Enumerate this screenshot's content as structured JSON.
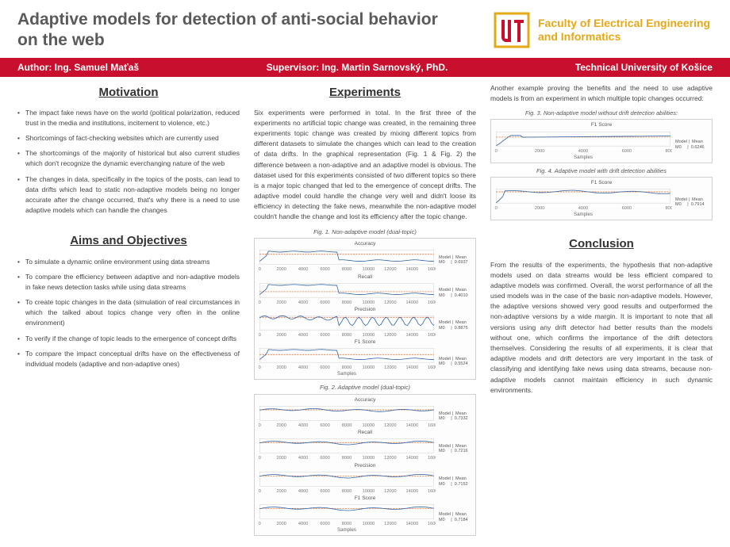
{
  "header": {
    "title": "Adaptive models for detection of anti-social behavior on the web",
    "faculty": "Faculty of Electrical Engineering and Informatics"
  },
  "redbar": {
    "author": "Author: Ing. Samuel Maťaš",
    "supervisor": "Supervisor: Ing. Martin Sarnovský, PhD.",
    "university": "Technical University of Košice"
  },
  "motivation": {
    "title": "Motivation",
    "items": [
      "The impact fake news have on the world (political polarization, reduced trust in the media and institutions, incitement to violence, etc.)",
      "Shortcomings of fact-checking websites which are currently used",
      "The shortcomings of the majority of historical but also current studies which don't recognize the dynamic everchanging nature of the web",
      "The changes in data, specifically in the topics of the posts, can lead to data drifts which lead to static non-adaptive models being no longer accurate after the change occurred, that's why there is a need to use adaptive models which can handle the changes"
    ]
  },
  "aims": {
    "title": "Aims and Objectives",
    "items": [
      "To simulate a dynamic online environment using data streams",
      "To compare the efficiency between adaptive and non-adaptive models in fake news detection tasks while using data streams",
      "To create topic changes in the data (simulation of real circumstances in which the talked about topics change very often in the online environment)",
      "To verify if the change of topic leads to the emergence of concept drifts",
      "To compare the impact conceptual drifts have on the effectiveness of individual models (adaptive and non-adaptive ones)"
    ]
  },
  "experiments": {
    "title": "Experiments",
    "para": "Six experiments were performed in total. In the first three of the experiments no artificial topic change was created, in the remaining three experiments topic change was created by mixing different topics from different datasets to simulate the changes which can lead to the creation of data drifts.  In the graphical representation (Fig. 1 & Fig. 2)  the difference between a non-adaptive and an adaptive model is obvious. The dataset used for this experiments consisted of two different topics so there is a major topic changed that led to the emergence of concept drifts. The adaptive model could handle the change very well and didn't loose its efficiency in detecting the fake news, meanwhile the non-adaptive model couldn't handle the change and lost its efficiency after the topic change.",
    "fig1_caption": "Fig. 1. Non-adaptive model (dual-topic)",
    "fig2_caption": "Fig. 2. Adaptive model (dual-topic)"
  },
  "col3": {
    "intro": "Another example proving the benefits and the need to use adaptive models is from an experiment in which multiple topic changes occurred:",
    "fig3_caption": "Fig. 3. Non-adaptive model without drift detection abilities:",
    "fig4_caption": "Fig. 4. Adaptive model with drift detection abilities"
  },
  "conclusion": {
    "title": "Conclusion",
    "para": "From the results of the experiments, the hypothesis that non-adaptive models used on data streams would be less efficient compared to adaptive models was confirmed. Overall, the worst performance of all the used models was in the case of the basic non-adaptive models. However, the adaptive versions showed very good results and outperformed the non-adaptive versions by a wide margin. It is important to note that all versions using any drift detector had better results than the models without one, which confirms the importance of the drift detectors themselves. Considering the results of all experiments, it is clear that adaptive models and drift detectors are very important in the task of classifying and identifying fake news using data streams, because non-adaptive models cannot maintain efficiency in such dynamic environments."
  },
  "charts": {
    "fig1": {
      "xmax": 16000,
      "xtick_step": 2000,
      "xlabel": "Samples",
      "color_line": "#2b5fa3",
      "color_mean": "#d46a2e",
      "axis_fontsize": 5,
      "metrics": [
        {
          "name": "Accuracy",
          "mean": 0.6937,
          "pattern": "high_then_drop"
        },
        {
          "name": "Recall",
          "mean": 0.401,
          "pattern": "high_then_drop"
        },
        {
          "name": "Precision",
          "mean": 0.8875,
          "pattern": "volatile_high"
        },
        {
          "name": "F1 Score",
          "mean": 0.5524,
          "pattern": "high_then_drop"
        }
      ]
    },
    "fig2": {
      "xmax": 16000,
      "xtick_step": 2000,
      "xlabel": "Samples",
      "color_line": "#2b5fa3",
      "color_mean": "#d46a2e",
      "axis_fontsize": 5,
      "metrics": [
        {
          "name": "Accuracy",
          "mean": 0.7332,
          "pattern": "wavy_high"
        },
        {
          "name": "Recall",
          "mean": 0.7216,
          "pattern": "wavy_mid"
        },
        {
          "name": "Precision",
          "mean": 0.7152,
          "pattern": "wavy_mid"
        },
        {
          "name": "F1 Score",
          "mean": 0.7184,
          "pattern": "wavy_mid"
        }
      ]
    },
    "fig3": {
      "xmax": 8000,
      "xtick_step": 2000,
      "xlabel": "Samples",
      "color_line": "#2b5fa3",
      "color_mean": "#d46a2e",
      "axis_fontsize": 5,
      "metrics": [
        {
          "name": "F1 Score",
          "mean": 0.6246,
          "pattern": "rise_plateau"
        }
      ]
    },
    "fig4": {
      "xmax": 8000,
      "xtick_step": 2000,
      "xlabel": "Samples",
      "color_line": "#2b5fa3",
      "color_mean": "#d46a2e",
      "axis_fontsize": 5,
      "metrics": [
        {
          "name": "F1 Score",
          "mean": 0.7914,
          "pattern": "wavy_high2"
        }
      ]
    }
  }
}
